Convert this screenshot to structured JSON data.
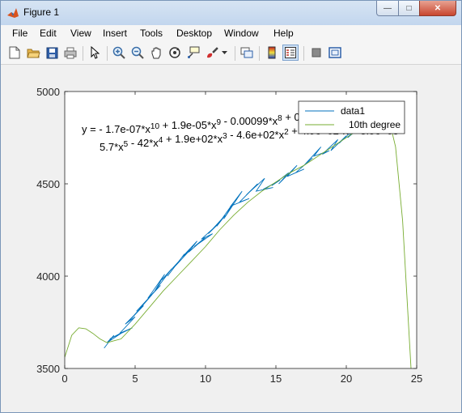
{
  "window": {
    "title": "Figure 1"
  },
  "menu": [
    "File",
    "Edit",
    "View",
    "Insert",
    "Tools",
    "Desktop",
    "Window",
    "Help"
  ],
  "toolbar": {
    "icons": [
      "new-figure-icon",
      "open-file-icon",
      "save-icon",
      "print-icon",
      "pointer-icon",
      "zoom-in-icon",
      "zoom-out-icon",
      "pan-icon",
      "rotate-3d-icon",
      "data-cursor-icon",
      "brush-icon",
      "brush-dropdown-icon",
      "link-plot-icon",
      "colorbar-icon",
      "legend-icon",
      "hide-plot-tools-icon",
      "show-plot-tools-icon"
    ]
  },
  "axes": {
    "xlim": [
      0,
      25
    ],
    "ylim": [
      3500,
      5000
    ],
    "xticks": [
      "0",
      "5",
      "10",
      "15",
      "20",
      "25"
    ],
    "yticks": [
      "3500",
      "4000",
      "4500",
      "5000"
    ]
  },
  "legend": {
    "location": "top-right",
    "entries": [
      "data1",
      "10th degree"
    ]
  },
  "colors": {
    "data1": "#0072bd",
    "fit": "#77ac30"
  },
  "annotation": {
    "line1": [
      {
        "t": "y = - 1.7e-07*x"
      },
      {
        "s": "10"
      },
      {
        "t": " + 1.9e-05*x"
      },
      {
        "s": "9"
      },
      {
        "t": " - 0.00099*x"
      },
      {
        "s": "8"
      },
      {
        "t": " + 0.0"
      }
    ],
    "line2": [
      {
        "t": "5.7*x"
      },
      {
        "s": "5"
      },
      {
        "t": " - 42*x"
      },
      {
        "s": "4"
      },
      {
        "t": " + 1.9e+02*x"
      },
      {
        "s": "3"
      },
      {
        "t": " - 4.6e+02*x"
      },
      {
        "s": "2"
      },
      {
        "t": " + 4.9e+02*x + 3.5e+03"
      }
    ]
  },
  "chart_data": {
    "type": "line",
    "xlim": [
      0,
      25
    ],
    "ylim": [
      3500,
      5000
    ],
    "grid": false,
    "series": [
      {
        "name": "data1",
        "x": [
          2.8,
          3.5,
          3.0,
          4.2,
          3.2,
          4.8,
          3.9,
          5.0,
          4.3,
          5.6,
          4.6,
          5.3,
          6.2,
          5.1,
          6.8,
          5.9,
          7.1,
          6.4,
          7.6,
          6.9,
          8.1,
          7.3,
          8.5,
          7.8,
          9.0,
          8.3,
          9.4,
          8.8,
          10.0,
          9.2,
          10.5,
          9.7,
          11.0,
          10.2,
          11.4,
          10.8,
          12.0,
          11.3,
          12.6,
          11.8,
          13.1,
          12.4,
          13.7,
          12.9,
          14.2,
          13.6,
          14.8,
          14.1,
          15.3,
          14.7,
          15.9,
          15.2,
          16.5,
          15.8,
          17.0,
          16.4,
          17.6,
          17.0,
          18.2,
          17.7,
          18.8,
          18.3,
          19.4,
          18.9,
          20.0,
          19.5,
          20.6,
          20.1,
          21.2,
          20.7,
          21.8,
          21.3,
          22.3,
          21.8,
          22.6
        ],
        "y": [
          3610,
          3680,
          3640,
          3700,
          3660,
          3720,
          3690,
          3780,
          3740,
          3840,
          3760,
          3820,
          3900,
          3810,
          3950,
          3880,
          4010,
          3920,
          4040,
          3980,
          4080,
          4000,
          4120,
          4050,
          4150,
          4100,
          4190,
          4130,
          4210,
          4160,
          4230,
          4200,
          4290,
          4230,
          4330,
          4270,
          4400,
          4310,
          4460,
          4380,
          4420,
          4400,
          4500,
          4440,
          4530,
          4460,
          4480,
          4470,
          4520,
          4490,
          4560,
          4500,
          4600,
          4540,
          4580,
          4560,
          4640,
          4600,
          4700,
          4650,
          4680,
          4660,
          4740,
          4680,
          4760,
          4720,
          4800,
          4750,
          4820,
          4780,
          4860,
          4830,
          4880,
          4840,
          4900
        ]
      },
      {
        "name": "10th degree",
        "x": [
          0,
          0.5,
          1.0,
          1.5,
          2.0,
          2.5,
          3.0,
          4.0,
          5.0,
          6.0,
          7.0,
          8.0,
          9.0,
          10.0,
          11.0,
          12.0,
          13.0,
          14.0,
          15.0,
          16.0,
          17.0,
          18.0,
          19.0,
          20.0,
          21.0,
          22.0,
          22.5,
          23.0,
          23.5,
          24.0,
          24.3,
          24.6
        ],
        "y": [
          3560,
          3680,
          3720,
          3715,
          3690,
          3660,
          3640,
          3660,
          3740,
          3830,
          3920,
          4000,
          4080,
          4160,
          4250,
          4330,
          4400,
          4460,
          4510,
          4560,
          4600,
          4650,
          4700,
          4750,
          4800,
          4850,
          4870,
          4860,
          4700,
          4300,
          3900,
          3500
        ]
      }
    ]
  }
}
